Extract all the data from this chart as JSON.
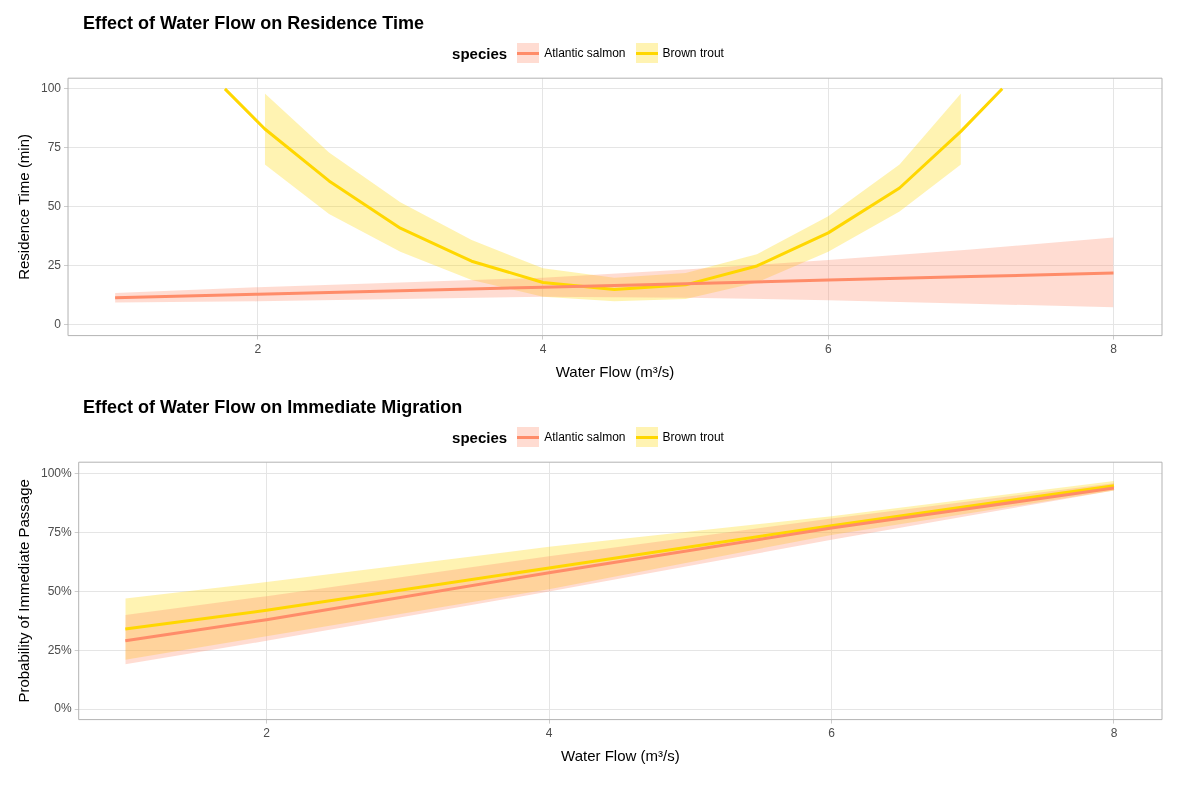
{
  "chart_data": [
    {
      "type": "line",
      "title": "Effect of Water Flow on Residence Time",
      "legend_title": "species",
      "legend": "top",
      "xlabel": "Water Flow (m³/s)",
      "ylabel": "Residence Time (min)",
      "xlim": [
        0.67,
        8.34
      ],
      "ylim": [
        -4.5,
        104.5
      ],
      "xticks": [
        2,
        4,
        6,
        8
      ],
      "yticks": [
        0,
        25,
        50,
        75,
        100
      ],
      "grid": true,
      "marker": "none",
      "line_style": "solid",
      "series": [
        {
          "name": "Atlantic salmon",
          "color": "#ff8c69",
          "x": [
            1,
            2,
            3,
            4,
            5,
            6,
            7,
            8
          ],
          "values": [
            11.5,
            13,
            14.5,
            16,
            17.5,
            19,
            20.5,
            22
          ],
          "lower": [
            9.5,
            10,
            11,
            12,
            11.5,
            10.5,
            9,
            7.5
          ],
          "upper": [
            13.5,
            16,
            18,
            20,
            23.5,
            27.5,
            32,
            37
          ]
        },
        {
          "name": "Brown trout",
          "color": "#ffd700",
          "x": [
            1.77,
            2.05,
            2.5,
            3,
            3.5,
            4,
            4.5,
            5,
            5.5,
            6,
            6.5,
            6.93,
            7.22
          ],
          "values": [
            100,
            83,
            61,
            41,
            27,
            18,
            15,
            17,
            25,
            39,
            58,
            82,
            100
          ],
          "lower": [
            null,
            68,
            47,
            31,
            19,
            12,
            10,
            11,
            18,
            31,
            48,
            68,
            null
          ],
          "upper": [
            null,
            98,
            73,
            52,
            36,
            24,
            20,
            22,
            30,
            46,
            68,
            98,
            null
          ]
        }
      ]
    },
    {
      "type": "line",
      "title": "Effect of Water Flow on Immediate Migration",
      "legend_title": "species",
      "legend": "top",
      "xlabel": "Water Flow (m³/s)",
      "ylabel": "Probability of Immediate Passage",
      "xlim": [
        0.67,
        8.34
      ],
      "ylim": [
        -4.5,
        105
      ],
      "xticks": [
        2,
        4,
        6,
        8
      ],
      "yticks": [
        {
          "value": 0,
          "label": "0%"
        },
        {
          "value": 25,
          "label": "25%"
        },
        {
          "value": 50,
          "label": "50%"
        },
        {
          "value": 75,
          "label": "75%"
        },
        {
          "value": 100,
          "label": "100%"
        }
      ],
      "grid": true,
      "marker": "none",
      "line_style": "solid",
      "series": [
        {
          "name": "Atlantic salmon",
          "color": "#ff8c69",
          "x": [
            1,
            2,
            4,
            6,
            8
          ],
          "values": [
            29,
            38,
            58,
            77,
            94
          ],
          "lower": [
            19,
            29,
            50,
            72,
            93
          ],
          "upper": [
            40,
            48,
            65,
            81,
            96
          ]
        },
        {
          "name": "Brown trout",
          "color": "#ffd700",
          "x": [
            1,
            2,
            4,
            6,
            8
          ],
          "values": [
            34,
            42,
            60,
            78,
            95
          ],
          "lower": [
            21,
            31,
            51,
            74,
            93
          ],
          "upper": [
            47,
            54,
            69,
            82,
            97
          ]
        }
      ]
    }
  ]
}
